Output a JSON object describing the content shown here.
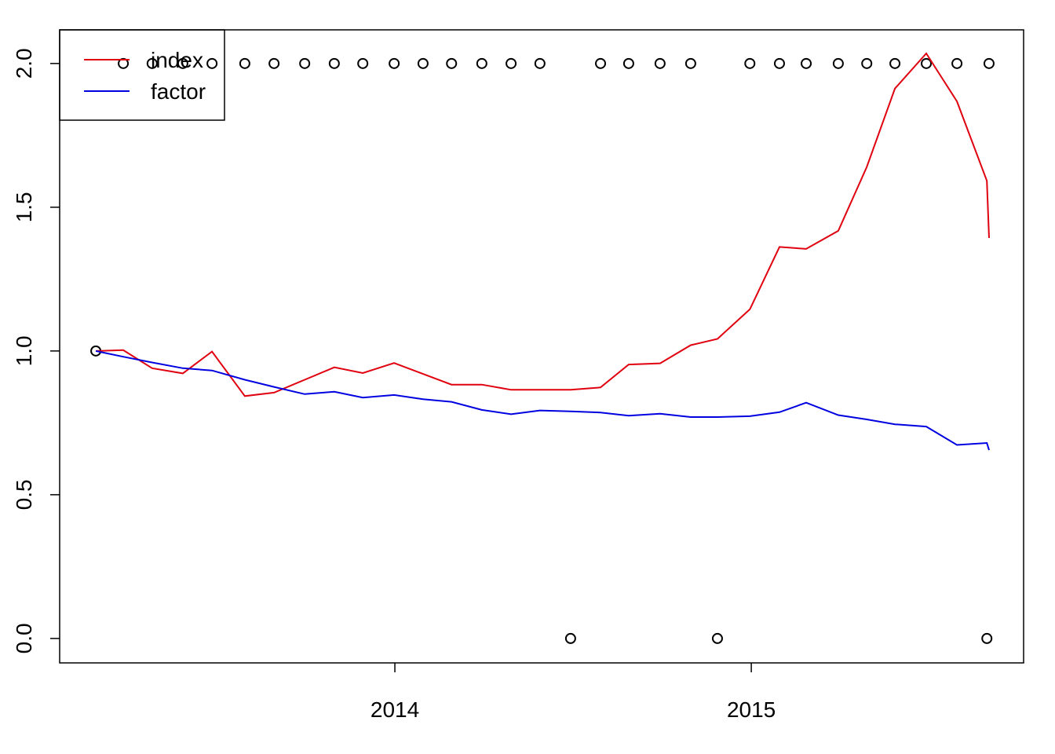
{
  "chart_data": {
    "type": "line",
    "x": [
      2013.161,
      2013.238,
      2013.319,
      2013.405,
      2013.487,
      2013.579,
      2013.661,
      2013.747,
      2013.83,
      2013.91,
      2013.998,
      2014.079,
      2014.159,
      2014.244,
      2014.326,
      2014.407,
      2014.493,
      2014.577,
      2014.656,
      2014.744,
      2014.83,
      2014.905,
      2014.996,
      2015.079,
      2015.154,
      2015.244,
      2015.324,
      2015.403,
      2015.491,
      2015.577,
      2015.661,
      2015.667
    ],
    "points": {
      "color": "#000000",
      "values": [
        1,
        2,
        2,
        2,
        2,
        2,
        2,
        2,
        2,
        2,
        2,
        2,
        2,
        2,
        2,
        2,
        0,
        2,
        2,
        2,
        2,
        0,
        2,
        2,
        2,
        2,
        2,
        2,
        2,
        2,
        0,
        2
      ]
    },
    "series": [
      {
        "name": "index",
        "color": "#e0000f",
        "values": [
          1.0,
          1.003,
          0.94,
          0.922,
          0.998,
          0.843,
          0.855,
          0.9,
          0.943,
          0.923,
          0.958,
          0.92,
          0.883,
          0.883,
          0.865,
          0.865,
          0.865,
          0.873,
          0.953,
          0.957,
          1.02,
          1.042,
          1.145,
          1.362,
          1.355,
          1.418,
          1.64,
          1.913,
          2.035,
          1.868,
          1.592,
          1.393
        ]
      },
      {
        "name": "factor",
        "color": "#0000e0",
        "values": [
          1.0,
          0.98,
          0.96,
          0.94,
          0.932,
          0.9,
          0.875,
          0.85,
          0.858,
          0.838,
          0.847,
          0.832,
          0.823,
          0.795,
          0.78,
          0.793,
          0.79,
          0.786,
          0.775,
          0.782,
          0.77,
          0.77,
          0.773,
          0.787,
          0.82,
          0.777,
          0.762,
          0.745,
          0.737,
          0.673,
          0.68,
          0.655
        ]
      }
    ],
    "xlim": [
      2013.0595,
      2015.764
    ],
    "xticks": [
      2014,
      2015
    ],
    "ylim": [
      -0.085,
      2.117
    ],
    "yticks": [
      {
        "value": 0,
        "label": "0.0"
      },
      0.5,
      {
        "value": 1,
        "label": "1.0"
      },
      1.5,
      {
        "value": 2,
        "label": "2.0"
      }
    ],
    "legend": "topleft"
  }
}
